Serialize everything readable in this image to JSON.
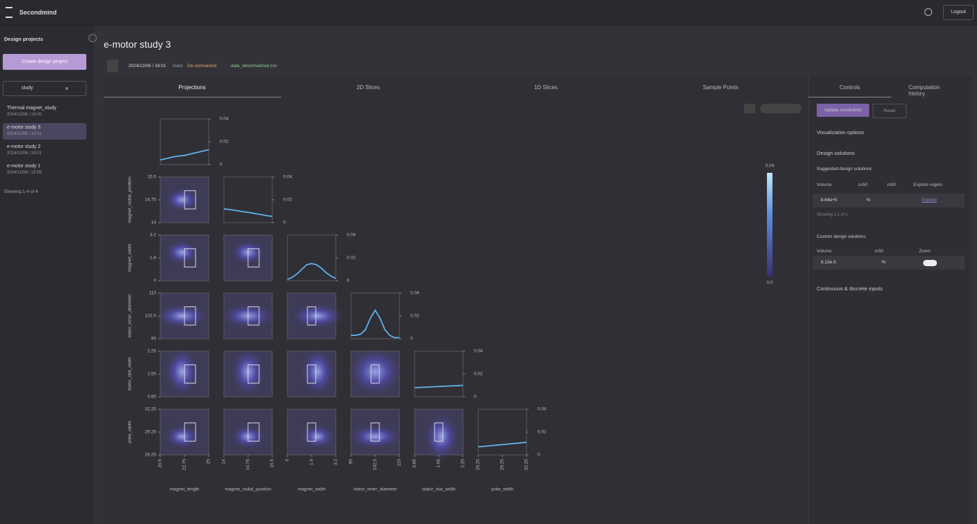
{
  "header": {
    "brand": "Secondmind",
    "logout": "Logout"
  },
  "sidebar": {
    "title": "Design projects",
    "create_button": "Create design project",
    "search": "study",
    "projects": [
      {
        "name": "Thermal magnet_study",
        "date": "2024/12/06 / 16:00"
      },
      {
        "name": "e-motor study 3",
        "date": "2024/12/06 / 16:01"
      },
      {
        "name": "e-motor study 2",
        "date": "2024/12/06 / 16:01"
      },
      {
        "name": "e-motor study 1",
        "date": "2024/12/06 / 15:59"
      }
    ],
    "showing": "Showing 1-4 of 4"
  },
  "project": {
    "title": "e-motor study 3",
    "date": "2024/12/06 / 16:01",
    "data_label": "Data:",
    "mode": "De-normalized",
    "file": "data_denormalized.csv"
  },
  "tabs": [
    "Projections",
    "2D Slices",
    "1D Slices",
    "Sample Points"
  ],
  "right_tabs": [
    "Controls",
    "Computation history"
  ],
  "controls": {
    "update_button": "Update constraints",
    "reset_button": "Reset",
    "visualization": "Visualization options",
    "design_solutions": "Design solutions",
    "suggested": {
      "title": "Suggested design solutions",
      "headers": [
        "Volume",
        "ss50",
        "m50",
        "Explore region"
      ],
      "row": [
        "8.64e+5",
        "%",
        "Explore"
      ],
      "showing": "Showing 1-1 of 1"
    },
    "custom": {
      "title": "Custom design solutions",
      "headers": [
        "Volume",
        "m50",
        "Zoom"
      ],
      "row": [
        "8.13e-5",
        "%"
      ]
    },
    "inputs": "Continuous & discrete inputs"
  },
  "chart_data": {
    "type": "corner",
    "variables": [
      {
        "name": "magnet_length",
        "lim": [
          20.5,
          25
        ],
        "ticks": [
          20.5,
          22.75,
          25
        ]
      },
      {
        "name": "magnet_radial_position",
        "lim": [
          14,
          15.5
        ],
        "ticks": [
          14,
          14.75,
          15.5
        ]
      },
      {
        "name": "magnet_width",
        "lim": [
          0,
          3.2
        ],
        "ticks": [
          0,
          1.6,
          3.2
        ]
      },
      {
        "name": "stator_inner_diameter",
        "lim": [
          95,
          110
        ],
        "ticks": [
          95,
          102.5,
          110
        ]
      },
      {
        "name": "stator_slot_width",
        "lim": [
          0.85,
          2.25
        ],
        "ticks": [
          0.85,
          1.55,
          2.25
        ]
      },
      {
        "name": "yoke_width",
        "lim": [
          26.25,
          32.25
        ],
        "ticks": [
          26.25,
          29.25,
          32.25
        ]
      }
    ],
    "ylim": [
      0,
      0.04
    ],
    "yticks": [
      0,
      0.02,
      0.04
    ],
    "curves": [
      {
        "values": [
          0.004,
          0.005,
          0.006,
          0.007,
          0.0075,
          0.008,
          0.009,
          0.01,
          0.011,
          0.012,
          0.013
        ]
      },
      {
        "values": [
          0.012,
          0.0115,
          0.011,
          0.0103,
          0.0095,
          0.009,
          0.0083,
          0.0075,
          0.0068,
          0.006,
          0.0055
        ]
      },
      {
        "values": [
          0.001,
          0.003,
          0.006,
          0.01,
          0.014,
          0.015,
          0.014,
          0.011,
          0.007,
          0.004,
          0.002
        ]
      },
      {
        "values": [
          0.003,
          0.003,
          0.004,
          0.008,
          0.018,
          0.025,
          0.018,
          0.008,
          0.003,
          0.001,
          0.001
        ]
      },
      {
        "values": [
          0.008,
          0.0082,
          0.0084,
          0.0086,
          0.0088,
          0.009,
          0.0092,
          0.0094,
          0.0096,
          0.0098,
          0.01
        ]
      },
      {
        "values": [
          0.007,
          0.0074,
          0.0078,
          0.0082,
          0.0086,
          0.009,
          0.0094,
          0.0098,
          0.0102,
          0.0106,
          0.011
        ]
      }
    ],
    "colorbar": {
      "lim": [
        0,
        0.04
      ],
      "ticks": [
        {
          "value": 0,
          "label": "0.0"
        },
        0.04
      ]
    }
  }
}
